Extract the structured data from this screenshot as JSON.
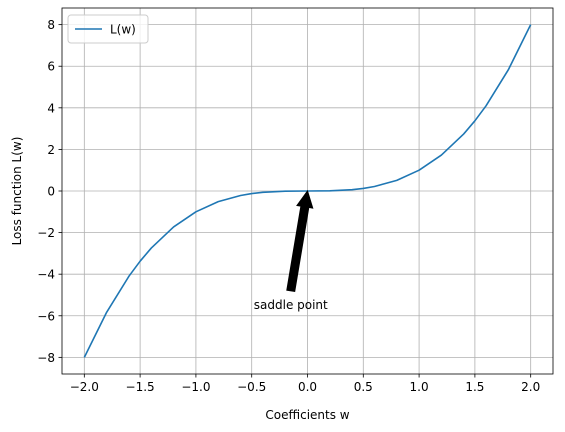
{
  "chart_data": {
    "type": "line",
    "title": "",
    "xlabel": "Coefficients w",
    "ylabel": "Loss function L(w)",
    "xlim": [
      -2.2,
      2.2
    ],
    "ylim": [
      -8.8,
      8.8
    ],
    "xticks": [
      -2.0,
      -1.5,
      -1.0,
      -0.5,
      0.0,
      0.5,
      1.0,
      1.5,
      2.0
    ],
    "xtick_labels": [
      "−2.0",
      "−1.5",
      "−1.0",
      "−0.5",
      "0.0",
      "0.5",
      "1.0",
      "1.5",
      "2.0"
    ],
    "yticks": [
      -8,
      -6,
      -4,
      -2,
      0,
      2,
      4,
      6,
      8
    ],
    "ytick_labels": [
      "−8",
      "−6",
      "−4",
      "−2",
      "0",
      "2",
      "4",
      "6",
      "8"
    ],
    "grid": true,
    "legend_position": "top-left",
    "series": [
      {
        "name": "L(w)",
        "color": "#1f77b4",
        "x": [
          -2.0,
          -1.8,
          -1.6,
          -1.5,
          -1.4,
          -1.2,
          -1.0,
          -0.8,
          -0.6,
          -0.5,
          -0.4,
          -0.2,
          0.0,
          0.2,
          0.4,
          0.5,
          0.6,
          0.8,
          1.0,
          1.2,
          1.4,
          1.5,
          1.6,
          1.8,
          2.0
        ],
        "y": [
          -8.0,
          -5.832,
          -4.096,
          -3.375,
          -2.744,
          -1.728,
          -1.0,
          -0.512,
          -0.216,
          -0.125,
          -0.064,
          -0.008,
          0.0,
          0.008,
          0.064,
          0.125,
          0.216,
          0.512,
          1.0,
          1.728,
          2.744,
          3.375,
          4.096,
          5.832,
          8.0
        ]
      }
    ],
    "annotations": [
      {
        "text": "saddle point",
        "point": [
          0.0,
          0.0
        ],
        "text_position": [
          -0.15,
          -4.8
        ]
      }
    ]
  }
}
